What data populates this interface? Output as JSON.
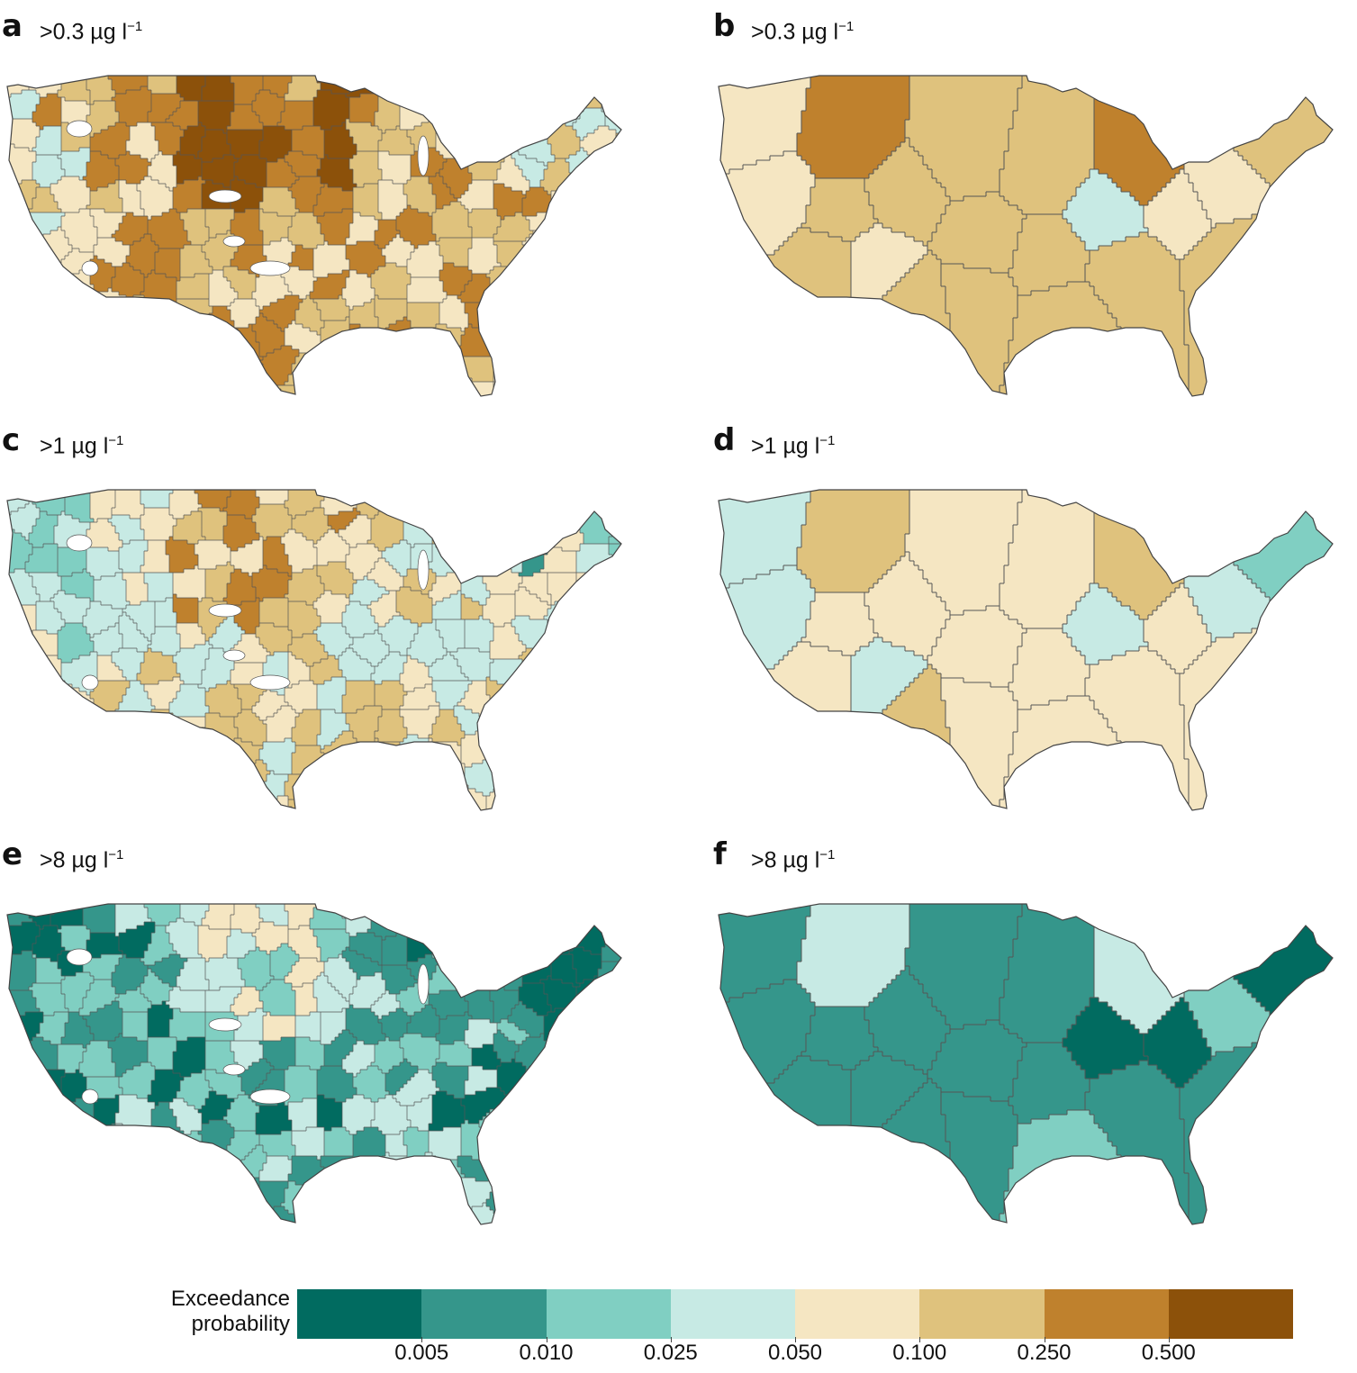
{
  "panels": [
    {
      "id": "a",
      "threshold": ">0.3 µg l",
      "exp": "−1",
      "kind": "fine",
      "seed": 11,
      "bias": 5.0
    },
    {
      "id": "b",
      "threshold": ">0.3 µg l",
      "exp": "−1",
      "kind": "coarse",
      "regions": [
        4,
        4,
        6,
        5,
        5,
        4,
        5,
        5,
        5,
        5,
        5,
        5,
        5,
        5,
        3,
        5,
        6,
        4,
        4,
        5,
        5
      ]
    },
    {
      "id": "c",
      "threshold": ">1 µg l",
      "exp": "−1",
      "kind": "fine",
      "seed": 23,
      "bias": 3.8
    },
    {
      "id": "d",
      "threshold": ">1 µg l",
      "exp": "−1",
      "kind": "coarse",
      "regions": [
        3,
        3,
        5,
        4,
        4,
        3,
        4,
        5,
        4,
        4,
        4,
        4,
        4,
        4,
        3,
        4,
        5,
        4,
        3,
        4,
        2
      ]
    },
    {
      "id": "e",
      "threshold": ">8 µg l",
      "exp": "−1",
      "kind": "fine",
      "seed": 37,
      "bias": 1.6
    },
    {
      "id": "f",
      "threshold": ">8 µg l",
      "exp": "−1",
      "kind": "coarse",
      "regions": [
        1,
        1,
        3,
        1,
        1,
        1,
        1,
        1,
        1,
        1,
        1,
        1,
        1,
        2,
        0,
        1,
        3,
        0,
        2,
        1,
        0
      ]
    }
  ],
  "legend": {
    "title_line1": "Exceedance",
    "title_line2": "probability",
    "colors": [
      "#016b60",
      "#35968b",
      "#80cfc2",
      "#c7eae4",
      "#f5e6c2",
      "#dfc27d",
      "#bf812d",
      "#8c510a"
    ],
    "ticks": [
      "0.005",
      "0.010",
      "0.025",
      "0.050",
      "0.100",
      "0.250",
      "0.500"
    ]
  }
}
